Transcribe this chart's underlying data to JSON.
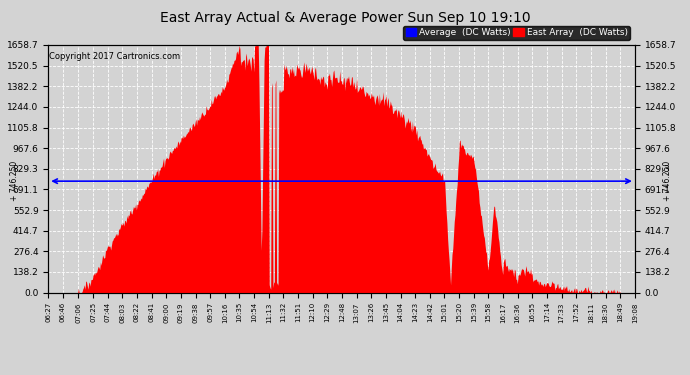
{
  "title": "East Array Actual & Average Power Sun Sep 10 19:10",
  "copyright": "Copyright 2017 Cartronics.com",
  "legend_avg": "Average  (DC Watts)",
  "legend_east": "East Array  (DC Watts)",
  "ymax": 1658.7,
  "ymin": 0.0,
  "avg_line_value": 746.25,
  "yticks": [
    0.0,
    138.2,
    276.4,
    414.7,
    552.9,
    691.1,
    829.3,
    967.6,
    1105.8,
    1244.0,
    1382.2,
    1520.5,
    1658.7
  ],
  "xtick_labels": [
    "06:27",
    "06:46",
    "07:06",
    "07:25",
    "07:44",
    "08:03",
    "08:22",
    "08:41",
    "09:00",
    "09:19",
    "09:38",
    "09:57",
    "10:16",
    "10:35",
    "10:54",
    "11:13",
    "11:32",
    "11:51",
    "12:10",
    "12:29",
    "12:48",
    "13:07",
    "13:26",
    "13:45",
    "14:04",
    "14:23",
    "14:42",
    "15:01",
    "15:20",
    "15:39",
    "15:58",
    "16:17",
    "16:36",
    "16:55",
    "17:14",
    "17:33",
    "17:52",
    "18:11",
    "18:30",
    "18:49",
    "19:08"
  ],
  "bg_color": "#d3d3d3",
  "fill_color": "#ff0000",
  "avg_line_color": "#0000ff",
  "grid_color": "#ffffff",
  "title_color": "#000000",
  "copyright_color": "#000000",
  "legend_bg": "#000000",
  "legend_text": "#ffffff"
}
